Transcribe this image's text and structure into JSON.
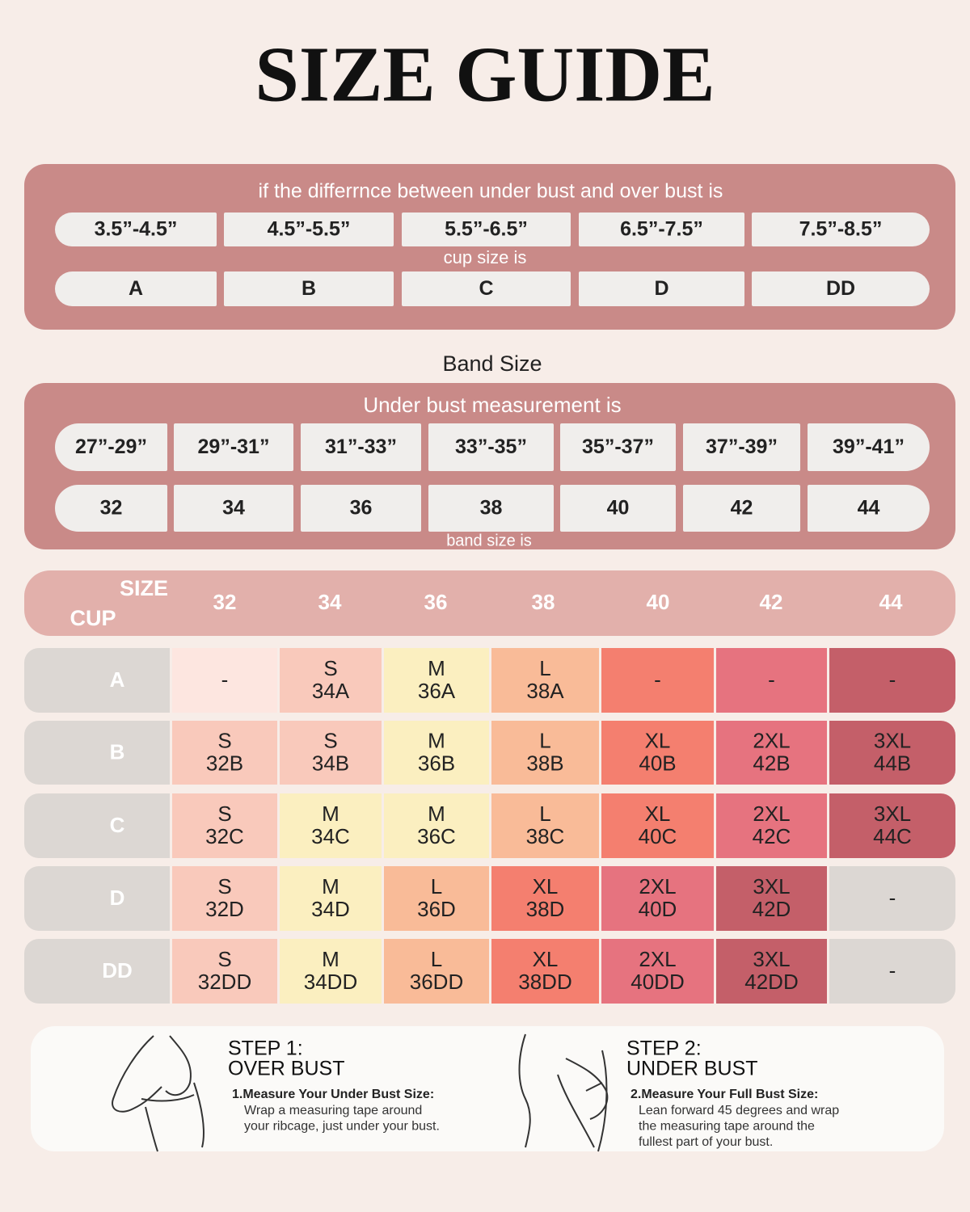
{
  "title": "SIZE GUIDE",
  "cup_chart": {
    "intro": "if the differrnce between under bust and over bust is",
    "ranges": [
      "3.5”-4.5”",
      "4.5”-5.5”",
      "5.5”-6.5”",
      "6.5”-7.5”",
      "7.5”-8.5”"
    ],
    "label": "cup size is",
    "cups": [
      "A",
      "B",
      "C",
      "D",
      "DD"
    ]
  },
  "band_heading": "Band Size",
  "band_chart": {
    "intro": "Under bust measurement is",
    "ranges": [
      "27”-29”",
      "29”-31”",
      "31”-33”",
      "33”-35”",
      "35”-37”",
      "37”-39”",
      "39”-41”"
    ],
    "sizes": [
      "32",
      "34",
      "36",
      "38",
      "40",
      "42",
      "44"
    ],
    "label": "band size is"
  },
  "size_table": {
    "header_size": "SIZE",
    "header_cup": "CUP",
    "bands": [
      "32",
      "34",
      "36",
      "38",
      "40",
      "42",
      "44"
    ],
    "rows": [
      {
        "cup": "A",
        "cells": [
          {
            "lines": [
              "-"
            ],
            "color": "#fde6e0"
          },
          {
            "lines": [
              "S",
              "34A"
            ],
            "color": "#f9c9bb"
          },
          {
            "lines": [
              "M",
              "36A"
            ],
            "color": "#fbefc0"
          },
          {
            "lines": [
              "L",
              "38A"
            ],
            "color": "#f9bb98"
          },
          {
            "lines": [
              "-"
            ],
            "color": "#f47f6f"
          },
          {
            "lines": [
              "-"
            ],
            "color": "#e6737f"
          },
          {
            "lines": [
              "-"
            ],
            "color": "#c45f69"
          }
        ]
      },
      {
        "cup": "B",
        "cells": [
          {
            "lines": [
              "S",
              "32B"
            ],
            "color": "#f9c9bb"
          },
          {
            "lines": [
              "S",
              "34B"
            ],
            "color": "#f9c9bb"
          },
          {
            "lines": [
              "M",
              "36B"
            ],
            "color": "#fbefc0"
          },
          {
            "lines": [
              "L",
              "38B"
            ],
            "color": "#f9bb98"
          },
          {
            "lines": [
              "XL",
              "40B"
            ],
            "color": "#f47f6f"
          },
          {
            "lines": [
              "2XL",
              "42B"
            ],
            "color": "#e6737f"
          },
          {
            "lines": [
              "3XL",
              "44B"
            ],
            "color": "#c45f69"
          }
        ]
      },
      {
        "cup": "C",
        "cells": [
          {
            "lines": [
              "S",
              "32C"
            ],
            "color": "#f9c9bb"
          },
          {
            "lines": [
              "M",
              "34C"
            ],
            "color": "#fbefc0"
          },
          {
            "lines": [
              "M",
              "36C"
            ],
            "color": "#fbefc0"
          },
          {
            "lines": [
              "L",
              "38C"
            ],
            "color": "#f9bb98"
          },
          {
            "lines": [
              "XL",
              "40C"
            ],
            "color": "#f47f6f"
          },
          {
            "lines": [
              "2XL",
              "42C"
            ],
            "color": "#e6737f"
          },
          {
            "lines": [
              "3XL",
              "44C"
            ],
            "color": "#c45f69"
          }
        ]
      },
      {
        "cup": "D",
        "cells": [
          {
            "lines": [
              "S",
              "32D"
            ],
            "color": "#f9c9bb"
          },
          {
            "lines": [
              "M",
              "34D"
            ],
            "color": "#fbefc0"
          },
          {
            "lines": [
              "L",
              "36D"
            ],
            "color": "#f9bb98"
          },
          {
            "lines": [
              "XL",
              "38D"
            ],
            "color": "#f47f6f"
          },
          {
            "lines": [
              "2XL",
              "40D"
            ],
            "color": "#e6737f"
          },
          {
            "lines": [
              "3XL",
              "42D"
            ],
            "color": "#c45f69"
          },
          {
            "lines": [
              "-"
            ],
            "color": "#dcd7d3"
          }
        ]
      },
      {
        "cup": "DD",
        "cells": [
          {
            "lines": [
              "S",
              "32DD"
            ],
            "color": "#f9c9bb"
          },
          {
            "lines": [
              "M",
              "34DD"
            ],
            "color": "#fbefc0"
          },
          {
            "lines": [
              "L",
              "36DD"
            ],
            "color": "#f9bb98"
          },
          {
            "lines": [
              "XL",
              "38DD"
            ],
            "color": "#f47f6f"
          },
          {
            "lines": [
              "2XL",
              "40DD"
            ],
            "color": "#e6737f"
          },
          {
            "lines": [
              "3XL",
              "42DD"
            ],
            "color": "#c45f69"
          },
          {
            "lines": [
              "-"
            ],
            "color": "#dcd7d3"
          }
        ]
      }
    ]
  },
  "steps": [
    {
      "title": [
        "STEP 1:",
        "OVER BUST"
      ],
      "heading": "1.Measure Your Under Bust Size:",
      "text": [
        "Wrap a measuring tape around",
        "your ribcage, just under your bust."
      ]
    },
    {
      "title": [
        "STEP 2:",
        "UNDER BUST"
      ],
      "heading": "2.Measure Your Full Bust Size:",
      "text": [
        "Lean forward 45 degrees and wrap",
        "the measuring tape around the",
        "fullest part of your bust."
      ]
    }
  ]
}
